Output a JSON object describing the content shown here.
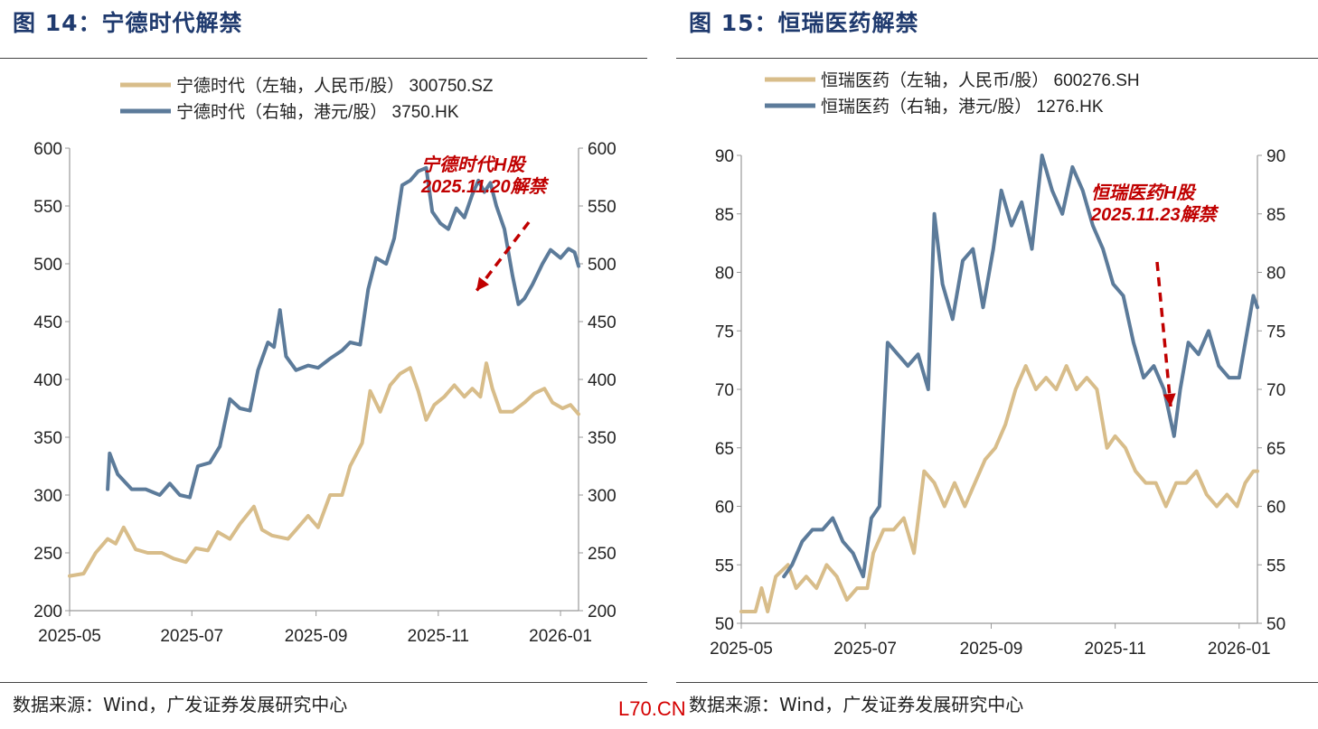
{
  "watermark": "L70.CN",
  "panels": [
    {
      "fig_title": "图 14：宁德时代解禁",
      "source": "数据来源：Wind，广发证券发展研究中心"
    },
    {
      "fig_title": "图 15：恒瑞医药解禁",
      "source": "数据来源：Wind，广发证券发展研究中心"
    }
  ],
  "colors": {
    "a_share": "#d8bd8a",
    "h_share": "#5c7b9a",
    "annotation": "#c00000",
    "axis": "#999999"
  },
  "chart_data": [
    {
      "type": "line",
      "title": "图 14：宁德时代解禁",
      "x_ticks": [
        "2025-05",
        "2025-07",
        "2025-09",
        "2025-11",
        "2026-01"
      ],
      "x_range": [
        "2025-05-01",
        "2026-01-10"
      ],
      "y_left": {
        "range": [
          200,
          600
        ],
        "ticks": [
          "200",
          "250",
          "300",
          "350",
          "400",
          "450",
          "500",
          "550",
          "600"
        ]
      },
      "y_right": {
        "range": [
          200,
          600
        ],
        "ticks": [
          "200",
          "250",
          "300",
          "350",
          "400",
          "450",
          "500",
          "550",
          "600"
        ]
      },
      "legend_position": "top-left",
      "series": [
        {
          "name": "宁德时代（左轴，人民币/股） 300750.SZ",
          "axis": "left",
          "color": "#d8bd8a",
          "points": [
            [
              "2025-05-01",
              230
            ],
            [
              "2025-05-08",
              232
            ],
            [
              "2025-05-14",
              250
            ],
            [
              "2025-05-20",
              262
            ],
            [
              "2025-05-24",
              258
            ],
            [
              "2025-05-28",
              272
            ],
            [
              "2025-06-03",
              253
            ],
            [
              "2025-06-09",
              250
            ],
            [
              "2025-06-16",
              250
            ],
            [
              "2025-06-22",
              245
            ],
            [
              "2025-06-28",
              242
            ],
            [
              "2025-07-03",
              254
            ],
            [
              "2025-07-09",
              252
            ],
            [
              "2025-07-14",
              268
            ],
            [
              "2025-07-20",
              262
            ],
            [
              "2025-07-25",
              275
            ],
            [
              "2025-08-01",
              290
            ],
            [
              "2025-08-05",
              270
            ],
            [
              "2025-08-10",
              265
            ],
            [
              "2025-08-18",
              262
            ],
            [
              "2025-08-22",
              270
            ],
            [
              "2025-08-28",
              282
            ],
            [
              "2025-09-02",
              272
            ],
            [
              "2025-09-08",
              300
            ],
            [
              "2025-09-14",
              300
            ],
            [
              "2025-09-18",
              325
            ],
            [
              "2025-09-24",
              345
            ],
            [
              "2025-09-28",
              390
            ],
            [
              "2025-10-03",
              372
            ],
            [
              "2025-10-08",
              395
            ],
            [
              "2025-10-13",
              405
            ],
            [
              "2025-10-18",
              410
            ],
            [
              "2025-10-22",
              390
            ],
            [
              "2025-10-26",
              365
            ],
            [
              "2025-10-30",
              378
            ],
            [
              "2025-11-04",
              385
            ],
            [
              "2025-11-09",
              395
            ],
            [
              "2025-11-14",
              385
            ],
            [
              "2025-11-18",
              392
            ],
            [
              "2025-11-22",
              385
            ],
            [
              "2025-11-25",
              414
            ],
            [
              "2025-11-28",
              392
            ],
            [
              "2025-12-02",
              372
            ],
            [
              "2025-12-08",
              372
            ],
            [
              "2025-12-14",
              380
            ],
            [
              "2025-12-19",
              388
            ],
            [
              "2025-12-24",
              392
            ],
            [
              "2025-12-28",
              380
            ],
            [
              "2026-01-02",
              375
            ],
            [
              "2026-01-06",
              378
            ],
            [
              "2026-01-10",
              370
            ]
          ]
        },
        {
          "name": "宁德时代（右轴，港元/股） 3750.HK",
          "axis": "right",
          "color": "#5c7b9a",
          "points": [
            [
              "2025-05-20",
              305
            ],
            [
              "2025-05-21",
              336
            ],
            [
              "2025-05-25",
              318
            ],
            [
              "2025-06-01",
              305
            ],
            [
              "2025-06-08",
              305
            ],
            [
              "2025-06-15",
              300
            ],
            [
              "2025-06-20",
              310
            ],
            [
              "2025-06-25",
              300
            ],
            [
              "2025-06-30",
              298
            ],
            [
              "2025-07-04",
              325
            ],
            [
              "2025-07-10",
              328
            ],
            [
              "2025-07-15",
              342
            ],
            [
              "2025-07-20",
              383
            ],
            [
              "2025-07-25",
              375
            ],
            [
              "2025-07-30",
              373
            ],
            [
              "2025-08-03",
              408
            ],
            [
              "2025-08-08",
              432
            ],
            [
              "2025-08-11",
              428
            ],
            [
              "2025-08-14",
              460
            ],
            [
              "2025-08-17",
              420
            ],
            [
              "2025-08-22",
              408
            ],
            [
              "2025-08-28",
              412
            ],
            [
              "2025-09-02",
              410
            ],
            [
              "2025-09-08",
              418
            ],
            [
              "2025-09-14",
              425
            ],
            [
              "2025-09-18",
              432
            ],
            [
              "2025-09-23",
              430
            ],
            [
              "2025-09-27",
              478
            ],
            [
              "2025-10-01",
              505
            ],
            [
              "2025-10-06",
              500
            ],
            [
              "2025-10-10",
              522
            ],
            [
              "2025-10-14",
              568
            ],
            [
              "2025-10-18",
              572
            ],
            [
              "2025-10-22",
              580
            ],
            [
              "2025-10-26",
              583
            ],
            [
              "2025-10-29",
              545
            ],
            [
              "2025-11-02",
              535
            ],
            [
              "2025-11-06",
              530
            ],
            [
              "2025-11-10",
              548
            ],
            [
              "2025-11-14",
              540
            ],
            [
              "2025-11-18",
              560
            ],
            [
              "2025-11-21",
              572
            ],
            [
              "2025-11-24",
              562
            ],
            [
              "2025-11-27",
              570
            ],
            [
              "2025-11-30",
              550
            ],
            [
              "2025-12-04",
              530
            ],
            [
              "2025-12-08",
              490
            ],
            [
              "2025-12-11",
              465
            ],
            [
              "2025-12-14",
              470
            ],
            [
              "2025-12-18",
              482
            ],
            [
              "2025-12-23",
              500
            ],
            [
              "2025-12-27",
              512
            ],
            [
              "2026-01-01",
              505
            ],
            [
              "2026-01-05",
              513
            ],
            [
              "2026-01-08",
              510
            ],
            [
              "2026-01-10",
              498
            ]
          ]
        }
      ],
      "annotation": {
        "lines": [
          "宁德时代H股",
          "2025.11.20解禁"
        ]
      }
    },
    {
      "type": "line",
      "title": "图 15：恒瑞医药解禁",
      "x_ticks": [
        "2025-05",
        "2025-07",
        "2025-09",
        "2025-11",
        "2026-01"
      ],
      "x_range": [
        "2025-05-01",
        "2026-01-10"
      ],
      "y_left": {
        "range": [
          50,
          90
        ],
        "ticks": [
          "50",
          "55",
          "60",
          "65",
          "70",
          "75",
          "80",
          "85",
          "90"
        ]
      },
      "y_right": {
        "range": [
          50,
          90
        ],
        "ticks": [
          "50",
          "55",
          "60",
          "65",
          "70",
          "75",
          "80",
          "85",
          "90"
        ]
      },
      "legend_position": "top-left",
      "series": [
        {
          "name": "恒瑞医药（左轴，人民币/股） 600276.SH",
          "axis": "left",
          "color": "#d8bd8a",
          "points": [
            [
              "2025-05-01",
              51
            ],
            [
              "2025-05-08",
              51
            ],
            [
              "2025-05-11",
              53
            ],
            [
              "2025-05-14",
              51
            ],
            [
              "2025-05-18",
              54
            ],
            [
              "2025-05-24",
              55
            ],
            [
              "2025-05-28",
              53
            ],
            [
              "2025-06-02",
              54
            ],
            [
              "2025-06-07",
              53
            ],
            [
              "2025-06-12",
              55
            ],
            [
              "2025-06-17",
              54
            ],
            [
              "2025-06-22",
              52
            ],
            [
              "2025-06-27",
              53
            ],
            [
              "2025-07-02",
              53
            ],
            [
              "2025-07-05",
              56
            ],
            [
              "2025-07-10",
              58
            ],
            [
              "2025-07-15",
              58
            ],
            [
              "2025-07-20",
              59
            ],
            [
              "2025-07-25",
              56
            ],
            [
              "2025-07-30",
              63
            ],
            [
              "2025-08-04",
              62
            ],
            [
              "2025-08-09",
              60
            ],
            [
              "2025-08-14",
              62
            ],
            [
              "2025-08-19",
              60
            ],
            [
              "2025-08-24",
              62
            ],
            [
              "2025-08-29",
              64
            ],
            [
              "2025-09-03",
              65
            ],
            [
              "2025-09-08",
              67
            ],
            [
              "2025-09-13",
              70
            ],
            [
              "2025-09-18",
              72
            ],
            [
              "2025-09-23",
              70
            ],
            [
              "2025-09-28",
              71
            ],
            [
              "2025-10-03",
              70
            ],
            [
              "2025-10-08",
              72
            ],
            [
              "2025-10-13",
              70
            ],
            [
              "2025-10-18",
              71
            ],
            [
              "2025-10-23",
              70
            ],
            [
              "2025-10-28",
              65
            ],
            [
              "2025-11-01",
              66
            ],
            [
              "2025-11-06",
              65
            ],
            [
              "2025-11-11",
              63
            ],
            [
              "2025-11-16",
              62
            ],
            [
              "2025-11-21",
              62
            ],
            [
              "2025-11-26",
              60
            ],
            [
              "2025-12-01",
              62
            ],
            [
              "2025-12-06",
              62
            ],
            [
              "2025-12-11",
              63
            ],
            [
              "2025-12-16",
              61
            ],
            [
              "2025-12-21",
              60
            ],
            [
              "2025-12-26",
              61
            ],
            [
              "2025-12-31",
              60
            ],
            [
              "2026-01-04",
              62
            ],
            [
              "2026-01-08",
              63
            ],
            [
              "2026-01-10",
              63
            ]
          ]
        },
        {
          "name": "恒瑞医药（右轴，港元/股） 1276.HK",
          "axis": "right",
          "color": "#5c7b9a",
          "points": [
            [
              "2025-05-22",
              54
            ],
            [
              "2025-05-26",
              55
            ],
            [
              "2025-05-31",
              57
            ],
            [
              "2025-06-05",
              58
            ],
            [
              "2025-06-10",
              58
            ],
            [
              "2025-06-15",
              59
            ],
            [
              "2025-06-20",
              57
            ],
            [
              "2025-06-25",
              56
            ],
            [
              "2025-06-30",
              54
            ],
            [
              "2025-07-04",
              59
            ],
            [
              "2025-07-08",
              60
            ],
            [
              "2025-07-12",
              74
            ],
            [
              "2025-07-17",
              73
            ],
            [
              "2025-07-22",
              72
            ],
            [
              "2025-07-27",
              73
            ],
            [
              "2025-08-01",
              70
            ],
            [
              "2025-08-04",
              85
            ],
            [
              "2025-08-08",
              79
            ],
            [
              "2025-08-13",
              76
            ],
            [
              "2025-08-18",
              81
            ],
            [
              "2025-08-23",
              82
            ],
            [
              "2025-08-28",
              77
            ],
            [
              "2025-09-02",
              82
            ],
            [
              "2025-09-06",
              87
            ],
            [
              "2025-09-11",
              84
            ],
            [
              "2025-09-16",
              86
            ],
            [
              "2025-09-21",
              82
            ],
            [
              "2025-09-26",
              90
            ],
            [
              "2025-10-01",
              87
            ],
            [
              "2025-10-06",
              85
            ],
            [
              "2025-10-11",
              89
            ],
            [
              "2025-10-16",
              87
            ],
            [
              "2025-10-21",
              84
            ],
            [
              "2025-10-26",
              82
            ],
            [
              "2025-10-31",
              79
            ],
            [
              "2025-11-05",
              78
            ],
            [
              "2025-11-10",
              74
            ],
            [
              "2025-11-15",
              71
            ],
            [
              "2025-11-20",
              72
            ],
            [
              "2025-11-25",
              70
            ],
            [
              "2025-11-30",
              66
            ],
            [
              "2025-12-03",
              70
            ],
            [
              "2025-12-07",
              74
            ],
            [
              "2025-12-12",
              73
            ],
            [
              "2025-12-17",
              75
            ],
            [
              "2025-12-22",
              72
            ],
            [
              "2025-12-27",
              71
            ],
            [
              "2026-01-01",
              71
            ],
            [
              "2026-01-05",
              75
            ],
            [
              "2026-01-08",
              78
            ],
            [
              "2026-01-10",
              77
            ]
          ]
        }
      ],
      "annotation": {
        "lines": [
          "恒瑞医药H股",
          "2025.11.23解禁"
        ]
      }
    }
  ]
}
